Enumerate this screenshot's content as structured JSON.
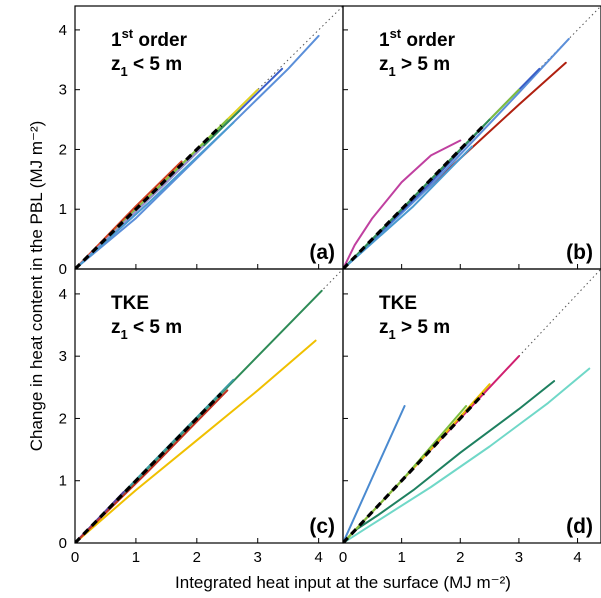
{
  "figure": {
    "xlabel": "Integrated heat input at the surface (MJ m⁻²)",
    "ylabel": "Change in heat content in the PBL (MJ m⁻²)"
  },
  "chart_data": [
    {
      "type": "line",
      "panel_letter": "(a)",
      "title_line1": "1st order",
      "title_line2": "z1 < 5 m",
      "xlim": [
        0,
        4.4
      ],
      "ylim": [
        0,
        4.4
      ],
      "xticks": [
        0,
        1,
        2,
        3,
        4
      ],
      "yticks": [
        0,
        1,
        2,
        3,
        4
      ],
      "one_to_one_line": true,
      "series": [
        {
          "color": "#5b8fd9",
          "x": [
            0,
            1,
            2,
            3,
            3.5,
            4.0
          ],
          "y": [
            0,
            0.85,
            1.85,
            2.85,
            3.35,
            3.9
          ]
        },
        {
          "color": "#3a5fc8",
          "x": [
            0,
            1.5,
            2.5,
            3.4
          ],
          "y": [
            0,
            1.45,
            2.45,
            3.35
          ]
        },
        {
          "color": "#e0d020",
          "x": [
            0,
            1.5,
            3.0
          ],
          "y": [
            0,
            1.5,
            3.0
          ]
        },
        {
          "color": "#2e8b57",
          "x": [
            0,
            1.5,
            2.7
          ],
          "y": [
            0,
            1.45,
            2.65
          ]
        },
        {
          "color": "#7fbf3f",
          "x": [
            0,
            1.3,
            2.5
          ],
          "y": [
            0,
            1.3,
            2.5
          ]
        },
        {
          "color": "#d04020",
          "x": [
            0,
            1.0,
            1.75
          ],
          "y": [
            0,
            1.05,
            1.8
          ]
        },
        {
          "color": "#9a8fd0",
          "x": [
            0,
            1.4,
            2.1
          ],
          "y": [
            0,
            1.35,
            2.05
          ]
        },
        {
          "color": "#4a9ad0",
          "x": [
            0,
            1.2,
            2.6
          ],
          "y": [
            0,
            1.1,
            2.45
          ]
        },
        {
          "color": "#000000",
          "dashed": true,
          "x": [
            0,
            2.4
          ],
          "y": [
            0,
            2.4
          ]
        }
      ]
    },
    {
      "type": "line",
      "panel_letter": "(b)",
      "title_line1": "1st order",
      "title_line2": "z1 > 5 m",
      "xlim": [
        0,
        4.4
      ],
      "ylim": [
        0,
        4.4
      ],
      "xticks": [
        0,
        1,
        2,
        3,
        4
      ],
      "yticks": [
        0,
        1,
        2,
        3,
        4
      ],
      "one_to_one_line": true,
      "series": [
        {
          "color": "#c040a0",
          "x": [
            0,
            0.2,
            0.5,
            1.0,
            1.5,
            2.0
          ],
          "y": [
            0,
            0.4,
            0.85,
            1.45,
            1.9,
            2.15
          ]
        },
        {
          "color": "#b02010",
          "x": [
            0,
            1.0,
            2.0,
            3.0,
            3.8
          ],
          "y": [
            0,
            0.95,
            1.85,
            2.75,
            3.45
          ]
        },
        {
          "color": "#5b8fd9",
          "x": [
            0,
            1.5,
            3.0,
            3.85
          ],
          "y": [
            0,
            1.4,
            2.95,
            3.85
          ]
        },
        {
          "color": "#3a5fc8",
          "x": [
            0,
            1.5,
            2.5,
            3.35
          ],
          "y": [
            0,
            1.45,
            2.5,
            3.35
          ]
        },
        {
          "color": "#7fbf3f",
          "x": [
            0,
            1.5,
            3.0
          ],
          "y": [
            0,
            1.5,
            3.0
          ]
        },
        {
          "color": "#2e8b57",
          "x": [
            0,
            1.4,
            2.5
          ],
          "y": [
            0,
            1.4,
            2.5
          ]
        },
        {
          "color": "#4a9ad0",
          "x": [
            0,
            1.2,
            2.2
          ],
          "y": [
            0,
            1.05,
            2.05
          ]
        },
        {
          "color": "#000000",
          "dashed": true,
          "x": [
            0,
            2.4
          ],
          "y": [
            0,
            2.4
          ]
        }
      ]
    },
    {
      "type": "line",
      "panel_letter": "(c)",
      "title_line1": "TKE",
      "title_line2": "z1 < 5 m",
      "xlim": [
        0,
        4.4
      ],
      "ylim": [
        0,
        4.4
      ],
      "xticks": [
        0,
        1,
        2,
        3,
        4
      ],
      "yticks": [
        0,
        1,
        2,
        3,
        4
      ],
      "one_to_one_line": true,
      "series": [
        {
          "color": "#2e8b57",
          "x": [
            0,
            1.0,
            2.0,
            3.0,
            4.05
          ],
          "y": [
            0,
            1.0,
            2.0,
            3.0,
            4.05
          ]
        },
        {
          "color": "#f0c000",
          "x": [
            0,
            1.0,
            2.0,
            3.0,
            3.95
          ],
          "y": [
            0,
            0.85,
            1.65,
            2.45,
            3.25
          ]
        },
        {
          "color": "#3a9aa0",
          "x": [
            0,
            1.3,
            2.6
          ],
          "y": [
            0,
            1.32,
            2.62
          ]
        },
        {
          "color": "#5b3fa0",
          "x": [
            0,
            0.8
          ],
          "y": [
            0,
            0.82
          ]
        },
        {
          "color": "#c03020",
          "x": [
            0,
            1.2,
            2.5
          ],
          "y": [
            0,
            1.15,
            2.45
          ]
        },
        {
          "color": "#000000",
          "dashed": true,
          "x": [
            0,
            2.4
          ],
          "y": [
            0,
            2.4
          ]
        }
      ]
    },
    {
      "type": "line",
      "panel_letter": "(d)",
      "title_line1": "TKE",
      "title_line2": "z1 > 5 m",
      "xlim": [
        0,
        4.4
      ],
      "ylim": [
        0,
        4.4
      ],
      "xticks": [
        0,
        1,
        2,
        3,
        4
      ],
      "yticks": [
        0,
        1,
        2,
        3,
        4
      ],
      "one_to_one_line": true,
      "series": [
        {
          "color": "#4a8ad0",
          "x": [
            0,
            0.5,
            1.05
          ],
          "y": [
            0,
            1.05,
            2.2
          ]
        },
        {
          "color": "#1e8060",
          "x": [
            0,
            0.2,
            0.6,
            1.2,
            2.0,
            3.0,
            3.6
          ],
          "y": [
            0,
            0.2,
            0.45,
            0.85,
            1.45,
            2.15,
            2.6
          ]
        },
        {
          "color": "#70d8c8",
          "x": [
            0,
            0.5,
            1.5,
            2.5,
            3.5,
            4.2
          ],
          "y": [
            0,
            0.3,
            0.9,
            1.55,
            2.25,
            2.8
          ]
        },
        {
          "color": "#d02070",
          "x": [
            0,
            1.5,
            3.0
          ],
          "y": [
            0,
            1.5,
            3.0
          ]
        },
        {
          "color": "#e8c000",
          "x": [
            0,
            1.3,
            2.5
          ],
          "y": [
            0,
            1.3,
            2.55
          ]
        },
        {
          "color": "#7fbf3f",
          "x": [
            0,
            1.0,
            2.1
          ],
          "y": [
            0,
            1.0,
            2.2
          ]
        },
        {
          "color": "#000000",
          "dashed": true,
          "x": [
            0,
            2.4
          ],
          "y": [
            0,
            2.4
          ]
        }
      ]
    }
  ]
}
